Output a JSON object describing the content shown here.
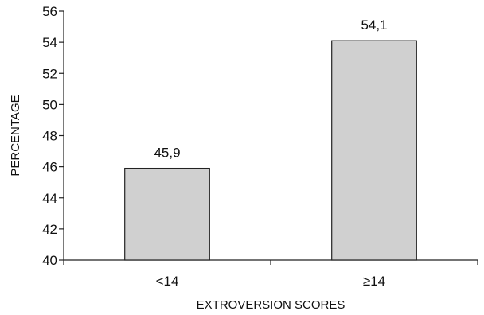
{
  "chart_data": {
    "type": "bar",
    "categories": [
      "<14",
      "≥14"
    ],
    "values": [
      45.9,
      54.1
    ],
    "value_labels": [
      "45,9",
      "54,1"
    ],
    "title": "",
    "xlabel": "EXTROVERSION SCORES",
    "ylabel": "PERCENTAGE",
    "ylim": [
      40,
      56
    ],
    "yticks": [
      40,
      42,
      44,
      46,
      48,
      50,
      52,
      54,
      56
    ],
    "grid": false,
    "bar_color": "#d0d0d0",
    "bar_edge_color": "#222222"
  }
}
